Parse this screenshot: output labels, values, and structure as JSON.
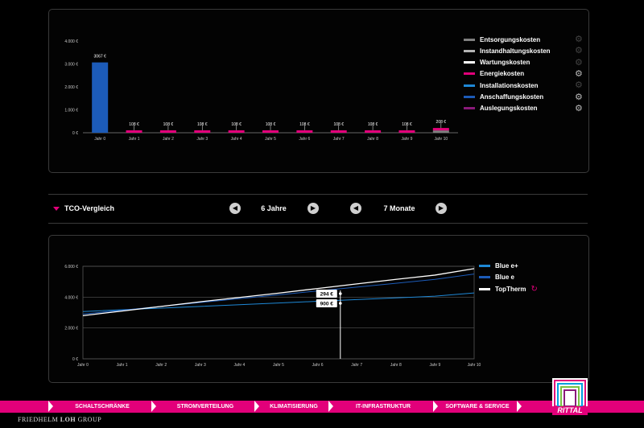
{
  "top_chart": {
    "y_ticks": [
      "4.000 €",
      "3.000 €",
      "2.000 €",
      "1.000 €",
      "0 €"
    ],
    "categories": [
      "Jahr 0",
      "Jahr 1",
      "Jahr 2",
      "Jahr 3",
      "Jahr 4",
      "Jahr 5",
      "Jahr 6",
      "Jahr 7",
      "Jahr 8",
      "Jahr 9",
      "Jahr 10"
    ],
    "value_labels": [
      "3067 €",
      "108 €",
      "108 €",
      "108 €",
      "108 €",
      "108 €",
      "108 €",
      "108 €",
      "108 €",
      "108 €",
      "208 €"
    ],
    "legend": [
      {
        "label": "Entsorgungskosten",
        "color": "#808080",
        "gear": "gear-icon-dim"
      },
      {
        "label": "Instandhaltungskosten",
        "color": "#b5b5b5",
        "gear": "gear-icon-dim"
      },
      {
        "label": "Wartungskosten",
        "color": "#ffffff",
        "gear": "gear-icon-dim"
      },
      {
        "label": "Energiekosten",
        "color": "#e2007a",
        "gear": "gear-icon"
      },
      {
        "label": "Installationskosten",
        "color": "#1e88d6",
        "gear": "gear-icon-dim"
      },
      {
        "label": "Anschaffungskosten",
        "color": "#1c5bb8",
        "gear": "gear-icon"
      },
      {
        "label": "Auslegungskosten",
        "color": "#8a1a7a",
        "gear": "gear-icon"
      }
    ]
  },
  "chart_data": [
    {
      "type": "bar",
      "categories": [
        "Jahr 0",
        "Jahr 1",
        "Jahr 2",
        "Jahr 3",
        "Jahr 4",
        "Jahr 5",
        "Jahr 6",
        "Jahr 7",
        "Jahr 8",
        "Jahr 9",
        "Jahr 10"
      ],
      "values": [
        3067,
        108,
        108,
        108,
        108,
        108,
        108,
        108,
        108,
        108,
        208
      ],
      "ylim": [
        0,
        4000
      ],
      "series": [
        {
          "name": "Entsorgungskosten",
          "values": [
            0,
            0,
            0,
            0,
            0,
            0,
            0,
            0,
            0,
            0,
            100
          ]
        },
        {
          "name": "Instandhaltungskosten",
          "values": [
            0,
            0,
            0,
            0,
            0,
            0,
            0,
            0,
            0,
            0,
            0
          ]
        },
        {
          "name": "Wartungskosten",
          "values": [
            0,
            0,
            0,
            0,
            0,
            0,
            0,
            0,
            0,
            0,
            0
          ]
        },
        {
          "name": "Energiekosten",
          "values": [
            0,
            108,
            108,
            108,
            108,
            108,
            108,
            108,
            108,
            108,
            108
          ]
        },
        {
          "name": "Installationskosten",
          "values": [
            0,
            0,
            0,
            0,
            0,
            0,
            0,
            0,
            0,
            0,
            0
          ]
        },
        {
          "name": "Anschaffungskosten",
          "values": [
            3067,
            0,
            0,
            0,
            0,
            0,
            0,
            0,
            0,
            0,
            0
          ]
        },
        {
          "name": "Auslegungskosten",
          "values": [
            0,
            0,
            0,
            0,
            0,
            0,
            0,
            0,
            0,
            0,
            0
          ]
        }
      ],
      "legend_position": "right",
      "grid": false
    },
    {
      "type": "line",
      "x": [
        "Jahr 0",
        "Jahr 1",
        "Jahr 2",
        "Jahr 3",
        "Jahr 4",
        "Jahr 5",
        "Jahr 6",
        "Jahr 7",
        "Jahr 8",
        "Jahr 9",
        "Jahr 10"
      ],
      "ylim": [
        0,
        6000
      ],
      "y_ticks": [
        "6.000 €",
        "4.000 €",
        "2.000 €",
        "0 €"
      ],
      "series": [
        {
          "name": "Blue e+",
          "color": "#1e88d6",
          "values": [
            3067,
            3180,
            3290,
            3400,
            3510,
            3620,
            3730,
            3840,
            3950,
            4060,
            4270
          ]
        },
        {
          "name": "Blue e",
          "color": "#1c5bb8",
          "values": [
            2900,
            3150,
            3400,
            3650,
            3900,
            4150,
            4400,
            4650,
            4900,
            5150,
            5500
          ]
        },
        {
          "name": "TopTherm",
          "color": "#ffffff",
          "values": [
            2800,
            3100,
            3400,
            3700,
            3980,
            4260,
            4560,
            4860,
            5150,
            5430,
            5850
          ]
        }
      ],
      "marker": {
        "position": 6.58,
        "labels": [
          "294 €",
          "900 €"
        ]
      },
      "legend_position": "right",
      "grid": true
    }
  ],
  "tco": {
    "title": "TCO-Vergleich",
    "years": "6 Jahre",
    "months": "7 Monate"
  },
  "bottom_legend": [
    {
      "label": "Blue e+",
      "color": "#1e88d6"
    },
    {
      "label": "Blue e",
      "color": "#1c5bb8"
    },
    {
      "label": "TopTherm",
      "color": "#ffffff"
    }
  ],
  "footer": {
    "nav": [
      "SCHALTSCHRÄNKE",
      "STROMVERTEILUNG",
      "KLIMATISIERUNG",
      "IT-INFRASTRUKTUR",
      "SOFTWARE & SERVICE"
    ],
    "brand_a": "FRIEDHELM",
    "brand_b": "LOH",
    "brand_c": "GROUP",
    "logo_text": "RITTAL"
  }
}
